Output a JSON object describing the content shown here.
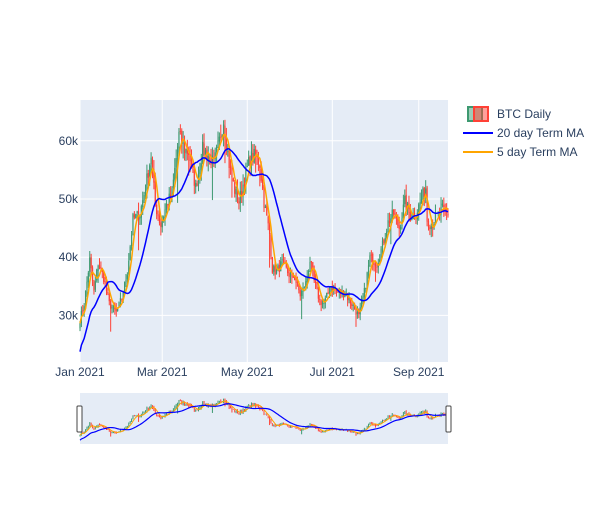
{
  "chart_data": {
    "type": "candlestick",
    "x_range": [
      "2021-01-01",
      "2021-09-22"
    ],
    "ylim": [
      22000,
      67000
    ],
    "x_ticks": [
      {
        "date": "2021-01-01",
        "label": "Jan 2021"
      },
      {
        "date": "2021-03-01",
        "label": "Mar 2021"
      },
      {
        "date": "2021-05-01",
        "label": "May 2021"
      },
      {
        "date": "2021-07-01",
        "label": "Jul 2021"
      },
      {
        "date": "2021-09-01",
        "label": "Sep 2021"
      }
    ],
    "y_ticks": [
      {
        "value": 30000,
        "label": "30k"
      },
      {
        "value": 40000,
        "label": "40k"
      },
      {
        "value": 50000,
        "label": "50k"
      },
      {
        "value": 60000,
        "label": "60k"
      }
    ],
    "grid": true,
    "legend_position": "top-right",
    "rangeslider": true,
    "colors": {
      "increasing": "#3D9970",
      "decreasing": "#FF4136",
      "ma20": "#0000ff",
      "ma5": "#ffa500",
      "plot_bg": "#E5ECF6",
      "grid": "#ffffff",
      "text": "#2a3f5f"
    },
    "close_anchors": [
      [
        "2021-01-01",
        29300
      ],
      [
        "2021-01-04",
        32000
      ],
      [
        "2021-01-08",
        39500
      ],
      [
        "2021-01-11",
        34000
      ],
      [
        "2021-01-14",
        39000
      ],
      [
        "2021-01-18",
        36500
      ],
      [
        "2021-01-22",
        32000
      ],
      [
        "2021-01-27",
        30500
      ],
      [
        "2021-01-31",
        33000
      ],
      [
        "2021-02-04",
        37500
      ],
      [
        "2021-02-08",
        46500
      ],
      [
        "2021-02-13",
        47500
      ],
      [
        "2021-02-17",
        52000
      ],
      [
        "2021-02-21",
        57500
      ],
      [
        "2021-02-24",
        49000
      ],
      [
        "2021-02-28",
        45500
      ],
      [
        "2021-03-04",
        49000
      ],
      [
        "2021-03-08",
        51000
      ],
      [
        "2021-03-13",
        61000
      ],
      [
        "2021-03-17",
        58500
      ],
      [
        "2021-03-20",
        58000
      ],
      [
        "2021-03-25",
        52000
      ],
      [
        "2021-03-30",
        58500
      ],
      [
        "2021-04-03",
        57500
      ],
      [
        "2021-04-07",
        56000
      ],
      [
        "2021-04-11",
        60000
      ],
      [
        "2021-04-14",
        63500
      ],
      [
        "2021-04-18",
        56000
      ],
      [
        "2021-04-22",
        51500
      ],
      [
        "2021-04-25",
        49500
      ],
      [
        "2021-04-29",
        53500
      ],
      [
        "2021-05-03",
        57000
      ],
      [
        "2021-05-07",
        57500
      ],
      [
        "2021-05-10",
        56000
      ],
      [
        "2021-05-13",
        49500
      ],
      [
        "2021-05-17",
        44000
      ],
      [
        "2021-05-19",
        38000
      ],
      [
        "2021-05-22",
        37500
      ],
      [
        "2021-05-26",
        39000
      ],
      [
        "2021-05-31",
        37000
      ],
      [
        "2021-06-04",
        36500
      ],
      [
        "2021-06-08",
        33500
      ],
      [
        "2021-06-12",
        35500
      ],
      [
        "2021-06-15",
        39500
      ],
      [
        "2021-06-18",
        35800
      ],
      [
        "2021-06-22",
        32500
      ],
      [
        "2021-06-25",
        32000
      ],
      [
        "2021-06-30",
        35000
      ],
      [
        "2021-07-05",
        34000
      ],
      [
        "2021-07-10",
        33800
      ],
      [
        "2021-07-15",
        32000
      ],
      [
        "2021-07-20",
        29800
      ],
      [
        "2021-07-24",
        34000
      ],
      [
        "2021-07-28",
        39900
      ],
      [
        "2021-08-02",
        39000
      ],
      [
        "2021-08-06",
        42000
      ],
      [
        "2021-08-10",
        46000
      ],
      [
        "2021-08-14",
        47500
      ],
      [
        "2021-08-18",
        45000
      ],
      [
        "2021-08-22",
        49500
      ],
      [
        "2021-08-26",
        47000
      ],
      [
        "2021-08-30",
        47500
      ],
      [
        "2021-09-03",
        50000
      ],
      [
        "2021-09-06",
        52000
      ],
      [
        "2021-09-07",
        46500
      ],
      [
        "2021-09-10",
        45500
      ],
      [
        "2021-09-14",
        47000
      ],
      [
        "2021-09-18",
        48200
      ],
      [
        "2021-09-21",
        47500
      ]
    ],
    "series": [
      {
        "name": "BTC Daily",
        "kind": "candlestick"
      },
      {
        "name": "20 day Term MA",
        "kind": "line"
      },
      {
        "name": "5 day Term MA",
        "kind": "line"
      }
    ]
  }
}
